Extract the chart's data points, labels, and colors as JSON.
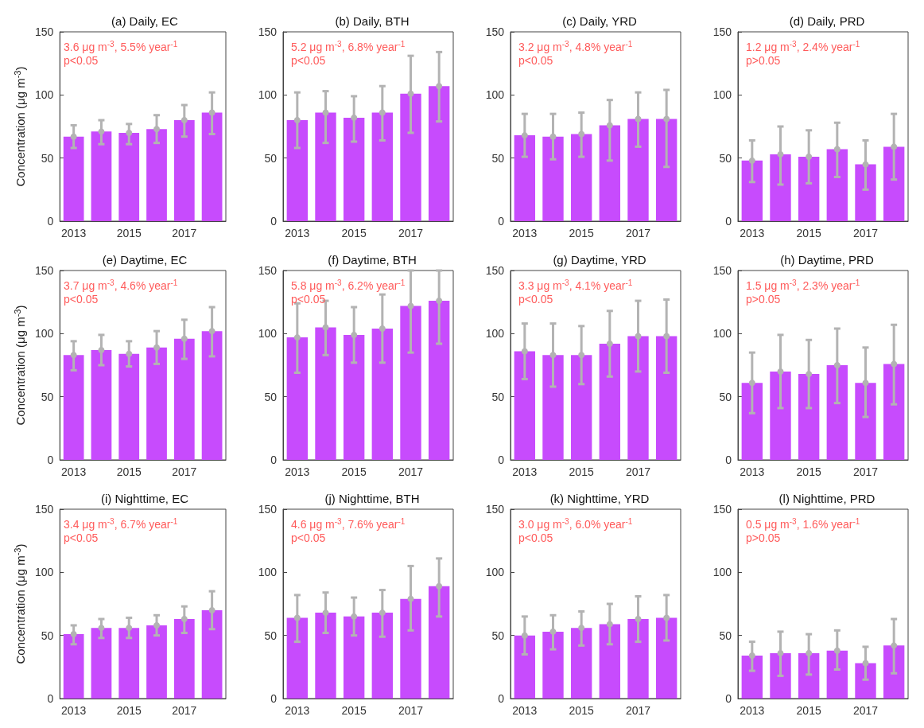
{
  "chart_data": [
    {
      "type": "bar",
      "title": "(a) Daily, EC",
      "ylabel": "Concentration (μg m$^{-3}$)",
      "categories": [
        "2013",
        null,
        "2015",
        null,
        "2017",
        null
      ],
      "ylim": [
        0,
        150
      ],
      "yticks": [
        0,
        50,
        100,
        150
      ],
      "annotations": [
        "3.6 μg m$^{-3}$, 5.5% year$^{-1}$",
        "p<0.05"
      ],
      "series": [
        {
          "type": "bar",
          "color": "#c74bfd",
          "values": [
            67,
            71,
            70,
            73,
            80,
            86
          ],
          "errors": [
            [
              58,
              76
            ],
            [
              61,
              80
            ],
            [
              61,
              77
            ],
            [
              62,
              84
            ],
            [
              67,
              92
            ],
            [
              69,
              102
            ]
          ]
        },
        {
          "type": "scatter",
          "color": "#b3b3b3",
          "values": [
            67,
            71,
            70,
            73,
            80,
            86
          ]
        }
      ]
    },
    {
      "type": "bar",
      "title": "(b) Daily, BTH",
      "categories": [
        "2013",
        null,
        "2015",
        null,
        "2017",
        null
      ],
      "ylim": [
        0,
        150
      ],
      "yticks": [
        0,
        50,
        100,
        150
      ],
      "annotations": [
        "5.2 μg m$^{-3}$, 6.8% year$^{-1}$",
        "p<0.05"
      ],
      "series": [
        {
          "type": "bar",
          "color": "#c74bfd",
          "values": [
            80,
            86,
            82,
            86,
            101,
            107
          ],
          "errors": [
            [
              58,
              102
            ],
            [
              62,
              103
            ],
            [
              63,
              99
            ],
            [
              64,
              107
            ],
            [
              70,
              131
            ],
            [
              79,
              134
            ]
          ]
        },
        {
          "type": "scatter",
          "color": "#b3b3b3",
          "values": [
            80,
            86,
            82,
            86,
            101,
            107
          ]
        }
      ]
    },
    {
      "type": "bar",
      "title": "(c) Daily, YRD",
      "categories": [
        "2013",
        null,
        "2015",
        null,
        "2017",
        null
      ],
      "ylim": [
        0,
        150
      ],
      "yticks": [
        0,
        50,
        100,
        150
      ],
      "annotations": [
        "3.2 μg m$^{-3}$, 4.8% year$^{-1}$",
        "p<0.05"
      ],
      "series": [
        {
          "type": "bar",
          "color": "#c74bfd",
          "values": [
            68,
            67,
            69,
            76,
            81,
            81
          ],
          "errors": [
            [
              51,
              85
            ],
            [
              49,
              85
            ],
            [
              51,
              86
            ],
            [
              48,
              96
            ],
            [
              59,
              102
            ],
            [
              43,
              104
            ]
          ]
        },
        {
          "type": "scatter",
          "color": "#b3b3b3",
          "values": [
            68,
            67,
            69,
            76,
            81,
            81
          ]
        }
      ]
    },
    {
      "type": "bar",
      "title": "(d) Daily, PRD",
      "categories": [
        "2013",
        null,
        "2015",
        null,
        "2017",
        null
      ],
      "ylim": [
        0,
        150
      ],
      "yticks": [
        0,
        50,
        100,
        150
      ],
      "annotations": [
        "1.2 μg m$^{-3}$, 2.4% year$^{-1}$",
        "p>0.05"
      ],
      "series": [
        {
          "type": "bar",
          "color": "#c74bfd",
          "values": [
            48,
            53,
            51,
            57,
            45,
            59
          ],
          "errors": [
            [
              31,
              64
            ],
            [
              29,
              75
            ],
            [
              30,
              72
            ],
            [
              35,
              78
            ],
            [
              25,
              64
            ],
            [
              33,
              85
            ]
          ]
        },
        {
          "type": "scatter",
          "color": "#b3b3b3",
          "values": [
            48,
            53,
            51,
            57,
            45,
            59
          ]
        }
      ]
    },
    {
      "type": "bar",
      "title": "(e) Daytime, EC",
      "ylabel": "Concentration (μg m$^{-3}$)",
      "categories": [
        "2013",
        null,
        "2015",
        null,
        "2017",
        null
      ],
      "ylim": [
        0,
        150
      ],
      "yticks": [
        0,
        50,
        100,
        150
      ],
      "annotations": [
        "3.7 μg m$^{-3}$, 4.6% year$^{-1}$",
        "p<0.05"
      ],
      "series": [
        {
          "type": "bar",
          "color": "#c74bfd",
          "values": [
            83,
            87,
            84,
            89,
            96,
            102
          ],
          "errors": [
            [
              71,
              94
            ],
            [
              75,
              99
            ],
            [
              74,
              94
            ],
            [
              76,
              102
            ],
            [
              80,
              111
            ],
            [
              82,
              121
            ]
          ]
        },
        {
          "type": "scatter",
          "color": "#b3b3b3",
          "values": [
            83,
            87,
            84,
            89,
            96,
            102
          ]
        }
      ]
    },
    {
      "type": "bar",
      "title": "(f) Daytime, BTH",
      "categories": [
        "2013",
        null,
        "2015",
        null,
        "2017",
        null
      ],
      "ylim": [
        0,
        150
      ],
      "yticks": [
        0,
        50,
        100,
        150
      ],
      "annotations": [
        "5.8 μg m$^{-3}$, 6.2% year$^{-1}$",
        "p<0.05"
      ],
      "series": [
        {
          "type": "bar",
          "color": "#c74bfd",
          "values": [
            97,
            105,
            99,
            104,
            122,
            126
          ],
          "errors": [
            [
              69,
              124
            ],
            [
              83,
              126
            ],
            [
              77,
              121
            ],
            [
              77,
              131
            ],
            [
              85,
              150
            ],
            [
              92,
              150
            ]
          ]
        },
        {
          "type": "scatter",
          "color": "#b3b3b3",
          "values": [
            97,
            105,
            99,
            104,
            122,
            126
          ]
        }
      ]
    },
    {
      "type": "bar",
      "title": "(g) Daytime, YRD",
      "categories": [
        "2013",
        null,
        "2015",
        null,
        "2017",
        null
      ],
      "ylim": [
        0,
        150
      ],
      "yticks": [
        0,
        50,
        100,
        150
      ],
      "annotations": [
        "3.3 μg m$^{-3}$, 4.1% year$^{-1}$",
        "p<0.05"
      ],
      "series": [
        {
          "type": "bar",
          "color": "#c74bfd",
          "values": [
            86,
            83,
            83,
            92,
            98,
            98
          ],
          "errors": [
            [
              64,
              108
            ],
            [
              58,
              108
            ],
            [
              60,
              106
            ],
            [
              66,
              118
            ],
            [
              70,
              126
            ],
            [
              69,
              127
            ]
          ]
        },
        {
          "type": "scatter",
          "color": "#b3b3b3",
          "values": [
            86,
            83,
            83,
            92,
            98,
            98
          ]
        }
      ]
    },
    {
      "type": "bar",
      "title": "(h) Daytime, PRD",
      "categories": [
        "2013",
        null,
        "2015",
        null,
        "2017",
        null
      ],
      "ylim": [
        0,
        150
      ],
      "yticks": [
        0,
        50,
        100,
        150
      ],
      "annotations": [
        "1.5 μg m$^{-3}$, 2.3% year$^{-1}$",
        "p>0.05"
      ],
      "series": [
        {
          "type": "bar",
          "color": "#c74bfd",
          "values": [
            61,
            70,
            68,
            75,
            61,
            76
          ],
          "errors": [
            [
              37,
              85
            ],
            [
              41,
              99
            ],
            [
              41,
              95
            ],
            [
              45,
              104
            ],
            [
              34,
              89
            ],
            [
              44,
              107
            ]
          ]
        },
        {
          "type": "scatter",
          "color": "#b3b3b3",
          "values": [
            61,
            70,
            68,
            75,
            61,
            76
          ]
        }
      ]
    },
    {
      "type": "bar",
      "title": "(i) Nighttime, EC",
      "ylabel": "Concentration (μg m$^{-3}$)",
      "categories": [
        "2013",
        null,
        "2015",
        null,
        "2017",
        null
      ],
      "ylim": [
        0,
        150
      ],
      "yticks": [
        0,
        50,
        100,
        150
      ],
      "annotations": [
        "3.4 μg m$^{-3}$, 6.7% year$^{-1}$",
        "p<0.05"
      ],
      "series": [
        {
          "type": "bar",
          "color": "#c74bfd",
          "values": [
            51,
            56,
            56,
            58,
            63,
            70
          ],
          "errors": [
            [
              43,
              58
            ],
            [
              48,
              63
            ],
            [
              48,
              64
            ],
            [
              50,
              66
            ],
            [
              52,
              73
            ],
            [
              55,
              85
            ]
          ]
        },
        {
          "type": "scatter",
          "color": "#b3b3b3",
          "values": [
            51,
            56,
            56,
            58,
            63,
            70
          ]
        }
      ]
    },
    {
      "type": "bar",
      "title": "(j) Nighttime, BTH",
      "categories": [
        "2013",
        null,
        "2015",
        null,
        "2017",
        null
      ],
      "ylim": [
        0,
        150
      ],
      "yticks": [
        0,
        50,
        100,
        150
      ],
      "annotations": [
        "4.6 μg m$^{-3}$, 7.6% year$^{-1}$",
        "p<0.05"
      ],
      "series": [
        {
          "type": "bar",
          "color": "#c74bfd",
          "values": [
            64,
            68,
            65,
            68,
            79,
            89
          ],
          "errors": [
            [
              45,
              82
            ],
            [
              52,
              84
            ],
            [
              50,
              80
            ],
            [
              49,
              86
            ],
            [
              54,
              105
            ],
            [
              65,
              111
            ]
          ]
        },
        {
          "type": "scatter",
          "color": "#b3b3b3",
          "values": [
            64,
            68,
            65,
            68,
            79,
            89
          ]
        }
      ]
    },
    {
      "type": "bar",
      "title": "(k) Nighttime, YRD",
      "categories": [
        "2013",
        null,
        "2015",
        null,
        "2017",
        null
      ],
      "ylim": [
        0,
        150
      ],
      "yticks": [
        0,
        50,
        100,
        150
      ],
      "annotations": [
        "3.0 μg m$^{-3}$, 6.0% year$^{-1}$",
        "p<0.05"
      ],
      "series": [
        {
          "type": "bar",
          "color": "#c74bfd",
          "values": [
            50,
            53,
            56,
            59,
            63,
            64
          ],
          "errors": [
            [
              35,
              65
            ],
            [
              39,
              66
            ],
            [
              42,
              69
            ],
            [
              43,
              75
            ],
            [
              45,
              81
            ],
            [
              46,
              82
            ]
          ]
        },
        {
          "type": "scatter",
          "color": "#b3b3b3",
          "values": [
            50,
            53,
            56,
            59,
            63,
            64
          ]
        }
      ]
    },
    {
      "type": "bar",
      "title": "(l) Nighttime, PRD",
      "categories": [
        "2013",
        null,
        "2015",
        null,
        "2017",
        null
      ],
      "ylim": [
        0,
        150
      ],
      "yticks": [
        0,
        50,
        100,
        150
      ],
      "annotations": [
        "0.5 μg m$^{-3}$, 1.6% year$^{-1}$",
        "p>0.05"
      ],
      "series": [
        {
          "type": "bar",
          "color": "#c74bfd",
          "values": [
            34,
            36,
            36,
            38,
            28,
            42
          ],
          "errors": [
            [
              22,
              45
            ],
            [
              18,
              53
            ],
            [
              19,
              51
            ],
            [
              23,
              54
            ],
            [
              15,
              41
            ],
            [
              20,
              63
            ]
          ]
        },
        {
          "type": "scatter",
          "color": "#b3b3b3",
          "values": [
            34,
            36,
            36,
            38,
            28,
            42
          ]
        }
      ]
    }
  ]
}
